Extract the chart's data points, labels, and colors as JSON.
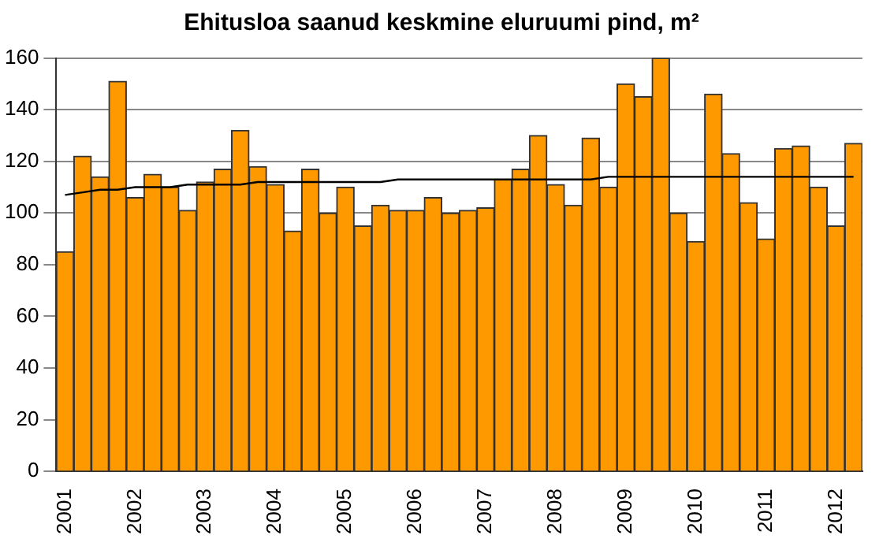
{
  "chart_data": {
    "type": "bar",
    "title": "Ehitusloa saanud keskmine eluruumi pind, m²",
    "categories": [
      "2001",
      null,
      null,
      null,
      "2002",
      null,
      null,
      null,
      "2003",
      null,
      null,
      null,
      "2004",
      null,
      null,
      null,
      "2005",
      null,
      null,
      null,
      "2006",
      null,
      null,
      null,
      "2007",
      null,
      null,
      null,
      "2008",
      null,
      null,
      null,
      "2009",
      null,
      null,
      null,
      "2010",
      null,
      null,
      null,
      "2011",
      null,
      null,
      null,
      "2012",
      null
    ],
    "series": [
      {
        "color": "#ff9900",
        "values": [
          85,
          122,
          114,
          151,
          106,
          115,
          110,
          101,
          112,
          117,
          132,
          118,
          111,
          93,
          117,
          100,
          110,
          95,
          103,
          101,
          101,
          106,
          100,
          101,
          102,
          113,
          117,
          130,
          111,
          103,
          129,
          110,
          150,
          145,
          160,
          100,
          89,
          146,
          123,
          104,
          90,
          125,
          126,
          110,
          95,
          127
        ]
      },
      {
        "type": "line",
        "color": "#000000",
        "marker": "none",
        "values": [
          107,
          108,
          109,
          109,
          110,
          110,
          110,
          111,
          111,
          111,
          111,
          112,
          112,
          112,
          112,
          112,
          112,
          112,
          112,
          113,
          113,
          113,
          113,
          113,
          113,
          113,
          113,
          113,
          113,
          113,
          113,
          114,
          114,
          114,
          114,
          114,
          114,
          114,
          114,
          114,
          114,
          114,
          114,
          114,
          114,
          114
        ]
      }
    ],
    "ylim": [
      0,
      160
    ],
    "yticks": [
      0,
      20,
      40,
      60,
      80,
      100,
      120,
      140,
      160
    ],
    "grid": "y",
    "legend": false
  }
}
